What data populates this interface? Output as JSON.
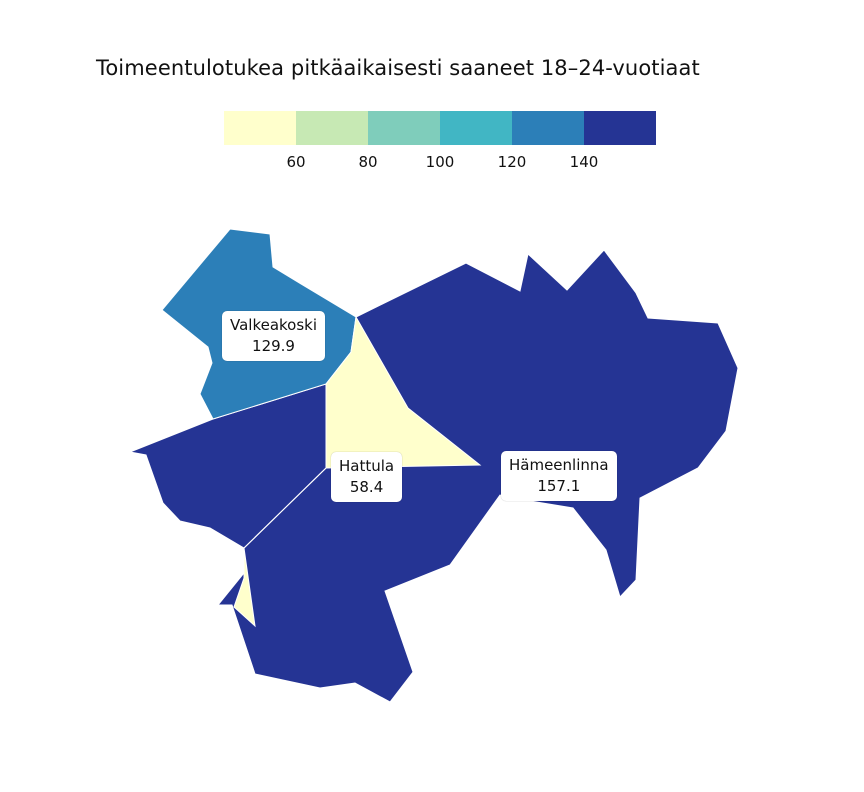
{
  "title": "Toimeentulotukea pitkäaikaisesti saaneet 18–24-vuotiaat",
  "legend": {
    "colors": [
      "#ffffcc",
      "#c7e9b4",
      "#7fcdbb",
      "#41b6c4",
      "#2c7fb8",
      "#253494"
    ],
    "ticks": [
      "60",
      "80",
      "100",
      "120",
      "140"
    ]
  },
  "regions": [
    {
      "name": "Valkeakoski",
      "value": "129.9",
      "color": "#2c7fb8"
    },
    {
      "name": "Hattula",
      "value": "58.4",
      "color": "#ffffcc"
    },
    {
      "name": "Hämeenlinna",
      "value": "157.1",
      "color": "#253494"
    }
  ]
}
